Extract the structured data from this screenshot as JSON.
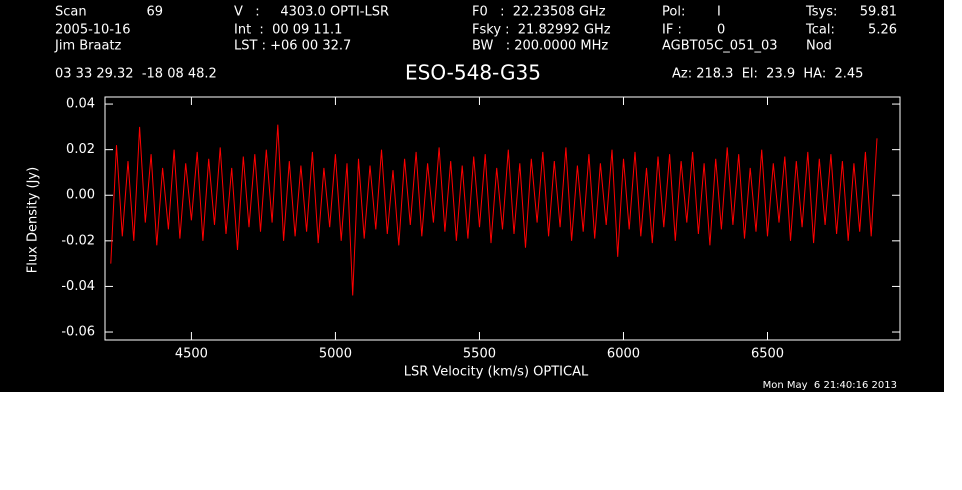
{
  "chart_data": {
    "type": "line",
    "title": "ESO-548-G35",
    "annotations": [
      "Scan",
      "69",
      "2005-10-16",
      "Jim Braatz",
      "03 33 29.32  -18 08 48.2",
      "V   :     4303.0 OPTI-LSR",
      "Int  :  00 09 11.1",
      "LST : +06 00 32.7",
      "F0   :  22.23508 GHz",
      "Fsky :  21.82992 GHz",
      "BW   : 200.0000 MHz",
      "Pol:",
      "I",
      "IF :",
      "0",
      "AGBT05C_051_03",
      "Tsys:",
      "59.81",
      "Tcal:",
      "5.26",
      "Nod",
      "Az: 218.3  El:  23.9  HA:  2.45"
    ],
    "timestamp": "Mon May  6 21:40:16 2013",
    "x_label": "LSR Velocity (km/s) OPTICAL",
    "y_label": "Flux Density (Jy)",
    "color": "#ff0000",
    "xlim": [
      4200,
      6960
    ],
    "ylim": [
      -0.0635,
      0.0431
    ],
    "xticks": [
      4500,
      5000,
      5500,
      6000,
      6500
    ],
    "yticks": [
      0.04,
      0.02,
      {
        "value": 0,
        "label": "0.00"
      },
      -0.02,
      -0.04,
      -0.06
    ],
    "x": [
      4220,
      4240,
      4260,
      4280,
      4300,
      4320,
      4340,
      4360,
      4380,
      4400,
      4420,
      4440,
      4460,
      4480,
      4500,
      4520,
      4540,
      4560,
      4580,
      4600,
      4620,
      4640,
      4660,
      4680,
      4700,
      4720,
      4740,
      4760,
      4780,
      4800,
      4820,
      4840,
      4860,
      4880,
      4900,
      4920,
      4940,
      4960,
      4980,
      5000,
      5020,
      5040,
      5060,
      5080,
      5100,
      5120,
      5140,
      5160,
      5180,
      5200,
      5220,
      5240,
      5260,
      5280,
      5300,
      5320,
      5340,
      5360,
      5380,
      5400,
      5420,
      5440,
      5460,
      5480,
      5500,
      5520,
      5540,
      5560,
      5580,
      5600,
      5620,
      5640,
      5660,
      5680,
      5700,
      5720,
      5740,
      5760,
      5780,
      5800,
      5820,
      5840,
      5860,
      5880,
      5900,
      5920,
      5940,
      5960,
      5980,
      6000,
      6020,
      6040,
      6060,
      6080,
      6100,
      6120,
      6140,
      6160,
      6180,
      6200,
      6220,
      6240,
      6260,
      6280,
      6300,
      6320,
      6340,
      6360,
      6380,
      6400,
      6420,
      6440,
      6460,
      6480,
      6500,
      6520,
      6540,
      6560,
      6580,
      6600,
      6620,
      6640,
      6660,
      6680,
      6700,
      6720,
      6740,
      6760,
      6780,
      6800,
      6820,
      6840,
      6860,
      6880
    ],
    "values": [
      -0.03,
      0.022,
      -0.018,
      0.015,
      -0.02,
      0.03,
      -0.012,
      0.018,
      -0.022,
      0.012,
      -0.015,
      0.02,
      -0.019,
      0.014,
      -0.011,
      0.019,
      -0.02,
      0.016,
      -0.013,
      0.021,
      -0.017,
      0.012,
      -0.024,
      0.017,
      -0.014,
      0.018,
      -0.016,
      0.02,
      -0.012,
      0.031,
      -0.02,
      0.015,
      -0.018,
      0.013,
      -0.016,
      0.019,
      -0.021,
      0.012,
      -0.014,
      0.018,
      -0.02,
      0.014,
      -0.044,
      0.016,
      -0.019,
      0.013,
      -0.015,
      0.02,
      -0.017,
      0.011,
      -0.022,
      0.016,
      -0.013,
      0.019,
      -0.018,
      0.014,
      -0.012,
      0.021,
      -0.016,
      0.015,
      -0.02,
      0.013,
      -0.019,
      0.017,
      -0.014,
      0.018,
      -0.021,
      0.012,
      -0.015,
      0.02,
      -0.017,
      0.014,
      -0.023,
      0.016,
      -0.012,
      0.019,
      -0.018,
      0.015,
      -0.014,
      0.021,
      -0.02,
      0.013,
      -0.016,
      0.018,
      -0.019,
      0.014,
      -0.013,
      0.02,
      -0.027,
      0.016,
      -0.015,
      0.019,
      -0.018,
      0.012,
      -0.021,
      0.017,
      -0.014,
      0.018,
      -0.02,
      0.015,
      -0.012,
      0.019,
      -0.017,
      0.014,
      -0.022,
      0.016,
      -0.015,
      0.021,
      -0.013,
      0.018,
      -0.019,
      0.012,
      -0.016,
      0.02,
      -0.018,
      0.014,
      -0.012,
      0.017,
      -0.02,
      0.015,
      -0.014,
      0.019,
      -0.021,
      0.016,
      -0.013,
      0.018,
      -0.017,
      0.015,
      -0.02,
      0.014,
      -0.016,
      0.019,
      -0.018,
      0.025
    ]
  }
}
